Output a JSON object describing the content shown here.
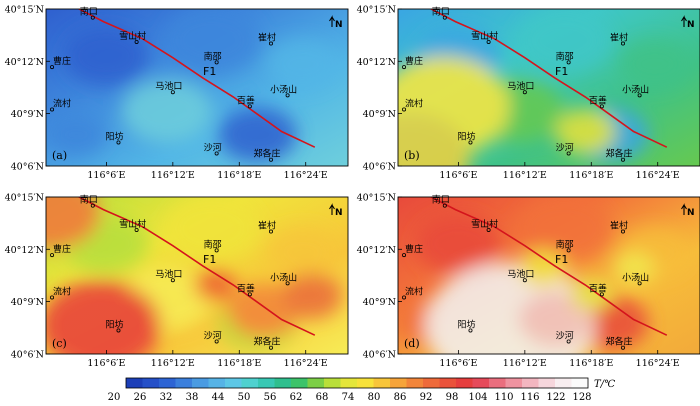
{
  "panels": [
    {
      "letter": "(a)",
      "palette": [
        "#2f60cf",
        "#3e86dc",
        "#52b6e6",
        "#6ecfdc"
      ],
      "hot": []
    },
    {
      "letter": "(b)",
      "palette": [
        "#3aa6e3",
        "#3fc7c8",
        "#40c287",
        "#66c950"
      ],
      "hot": [
        [
          "#ffe83a",
          0.15,
          0.62,
          0.22
        ],
        [
          "#e9e23a",
          0.62,
          0.78,
          0.1
        ],
        [
          "#f2d13c",
          0.04,
          0.95,
          0.2
        ]
      ]
    },
    {
      "letter": "(c)",
      "palette": [
        "#b6df3c",
        "#f0e43b",
        "#f7c63a",
        "#f7ec56"
      ],
      "hot": [
        [
          "#e83a3a",
          0.18,
          0.82,
          0.2
        ],
        [
          "#ee5d33",
          0.56,
          0.56,
          0.07
        ],
        [
          "#f2843a",
          0.72,
          0.73,
          0.12
        ],
        [
          "#f3763b",
          0.02,
          0.1,
          0.16
        ],
        [
          "#ea6b3b",
          0.88,
          0.63,
          0.1
        ]
      ]
    },
    {
      "letter": "(d)",
      "palette": [
        "#e84a3b",
        "#f2713a",
        "#f7bd3b",
        "#f2aa3a"
      ],
      "hot": [
        [
          "#f3f3f6",
          0.37,
          0.82,
          0.28
        ],
        [
          "#f1c4cd",
          0.52,
          0.78,
          0.12
        ],
        [
          "#f2e642",
          0.48,
          0.45,
          0.08
        ],
        [
          "#f1ec50",
          0.78,
          0.45,
          0.07
        ],
        [
          "#e6e54a",
          0.64,
          0.62,
          0.07
        ]
      ]
    }
  ],
  "lat_labels": [
    "40°15′N",
    "40°12′N",
    "40°9′N",
    "40°6′N"
  ],
  "lon_labels": [
    "116°6′E",
    "116°12′E",
    "116°18′E",
    "116°24′E"
  ],
  "north_symbol": "N",
  "fault_label": "F1",
  "places": [
    {
      "name": "南口",
      "fx": 0.155,
      "fy": 0.055
    },
    {
      "name": "雪山村",
      "fx": 0.3,
      "fy": 0.21
    },
    {
      "name": "崔村",
      "fx": 0.745,
      "fy": 0.22
    },
    {
      "name": "南邵",
      "fx": 0.565,
      "fy": 0.34
    },
    {
      "name": "曹庄",
      "fx": 0.02,
      "fy": 0.37
    },
    {
      "name": "马池口",
      "fx": 0.42,
      "fy": 0.53
    },
    {
      "name": "小汤山",
      "fx": 0.8,
      "fy": 0.55
    },
    {
      "name": "流村",
      "fx": 0.02,
      "fy": 0.64
    },
    {
      "name": "百善",
      "fx": 0.675,
      "fy": 0.62
    },
    {
      "name": "阳坊",
      "fx": 0.24,
      "fy": 0.85
    },
    {
      "name": "沙河",
      "fx": 0.565,
      "fy": 0.92
    },
    {
      "name": "郑各庄",
      "fx": 0.745,
      "fy": 1.0
    }
  ],
  "colorbar": {
    "ticks": [
      "20",
      "26",
      "32",
      "38",
      "44",
      "50",
      "56",
      "62",
      "68",
      "74",
      "80",
      "86",
      "92",
      "98",
      "104",
      "110",
      "116",
      "122",
      "128"
    ],
    "colors": [
      "#1c3fb8",
      "#2550c8",
      "#2d64d4",
      "#3b7fdc",
      "#4a9be2",
      "#56b3e6",
      "#5dc7e6",
      "#4fd1cf",
      "#38c8b4",
      "#2fbf8e",
      "#3cc36a",
      "#7ccf46",
      "#b9df3a",
      "#e4e63a",
      "#f7e23a",
      "#f7c53a",
      "#f6a43a",
      "#f2853a",
      "#ee6a3a",
      "#ea523b",
      "#e63e3e",
      "#e64a5a",
      "#ea6e7e",
      "#ef93a0",
      "#f3b6c0",
      "#f6d6dc",
      "#f8eef0",
      "#fbfbfb"
    ],
    "unit": "T/℃"
  }
}
